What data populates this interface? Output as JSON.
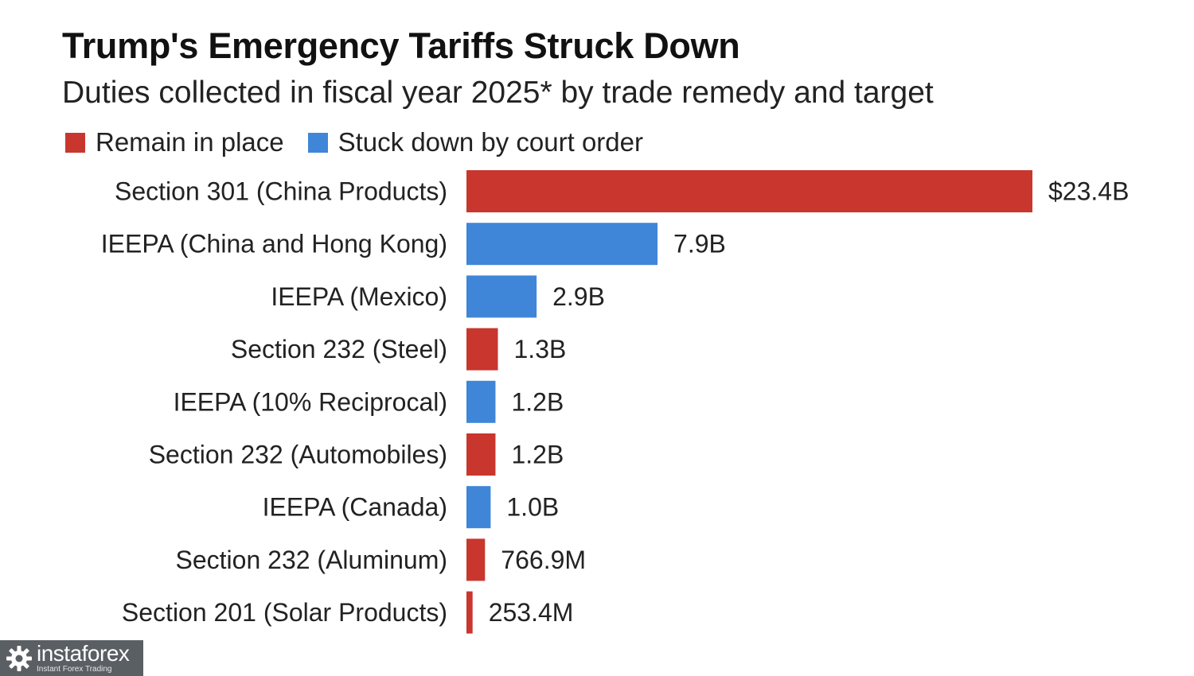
{
  "colors": {
    "remain": "#c9362e",
    "struck": "#3f86d8"
  },
  "watermark": {
    "brand": "instaforex",
    "tagline": "Instant Forex Trading",
    "icon": "gear-icon"
  },
  "chart_data": {
    "type": "bar",
    "orientation": "horizontal",
    "title": "Trump's Emergency Tariffs Struck Down",
    "subtitle": "Duties collected in fiscal year 2025* by trade remedy and target",
    "legend": [
      {
        "name": "Remain in place",
        "color": "#c9362e"
      },
      {
        "name": "Stuck down by court order",
        "color": "#3f86d8"
      }
    ],
    "legend_position": "top-left",
    "grid": false,
    "xlim": [
      0,
      23.4
    ],
    "unit": "billions of dollars",
    "categories": [
      "Section 301 (China Products)",
      "IEEPA (China and Hong Kong)",
      "IEEPA (Mexico)",
      "Section 232 (Steel)",
      "IEEPA (10% Reciprocal)",
      "Section 232 (Automobiles)",
      "IEEPA (Canada)",
      "Section 232 (Aluminum)",
      "Section 201 (Solar Products)"
    ],
    "values": [
      23.4,
      7.9,
      2.9,
      1.3,
      1.2,
      1.2,
      1.0,
      0.7669,
      0.2534
    ],
    "value_labels": [
      "$23.4B",
      "7.9B",
      "2.9B",
      "1.3B",
      "1.2B",
      "1.2B",
      "1.0B",
      "766.9M",
      "253.4M"
    ],
    "status": [
      "Remain in place",
      "Stuck down by court order",
      "Stuck down by court order",
      "Remain in place",
      "Stuck down by court order",
      "Remain in place",
      "Stuck down by court order",
      "Remain in place",
      "Remain in place"
    ]
  }
}
